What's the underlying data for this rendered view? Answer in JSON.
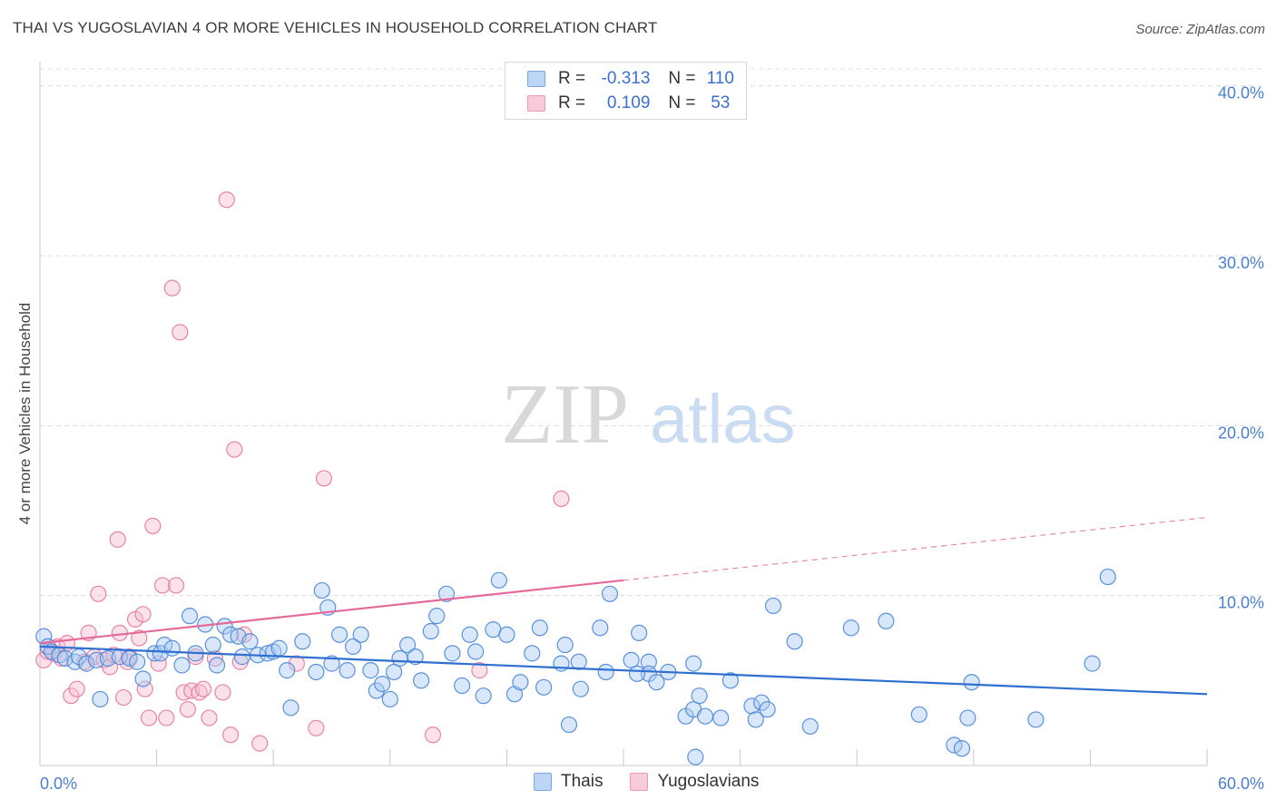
{
  "header": {
    "title": "THAI VS YUGOSLAVIAN 4 OR MORE VEHICLES IN HOUSEHOLD CORRELATION CHART",
    "source": "Source: ZipAtlas.com"
  },
  "watermark": {
    "zip": "ZIP",
    "atlas": "atlas"
  },
  "legend": {
    "rows": [
      {
        "r_label": "R =",
        "r_value": "-0.313",
        "n_label": "N =",
        "n_value": "110",
        "color": "#8fb7ea"
      },
      {
        "r_label": "R =",
        "r_value": "0.109",
        "n_label": "N =",
        "n_value": "53",
        "color": "#f0a3bb"
      }
    ]
  },
  "bottom_legend": {
    "thai": "Thais",
    "yugo": "Yugoslavians"
  },
  "chart_data": {
    "type": "scatter",
    "ylabel": "4 or more Vehicles in Household",
    "xlim": [
      0,
      60
    ],
    "ylim": [
      0,
      41
    ],
    "x_tick_labels": {
      "left": "0.0%",
      "right": "60.0%"
    },
    "y_ticks": [
      {
        "value": 10,
        "label": "10.0%"
      },
      {
        "value": 20,
        "label": "20.0%"
      },
      {
        "value": 30,
        "label": "30.0%"
      },
      {
        "value": 40,
        "label": "40.0%"
      }
    ],
    "grid": true,
    "colors": {
      "thai": "#4a86d8",
      "thai_fill": "#a9c9f1",
      "yugo": "#e5799b",
      "yugo_fill": "#f6bfd0",
      "thai_line": "#2f6fd0",
      "yugo_line": "#e5699a"
    },
    "series": [
      {
        "name": "Thais",
        "trend": {
          "x": [
            0,
            60
          ],
          "y": [
            7.0,
            4.2
          ],
          "dashed_from": null
        },
        "points": [
          [
            0.2,
            7.6
          ],
          [
            0.4,
            7.0
          ],
          [
            0.6,
            6.7
          ],
          [
            1.0,
            6.5
          ],
          [
            1.3,
            6.3
          ],
          [
            1.8,
            6.1
          ],
          [
            2.0,
            6.4
          ],
          [
            2.4,
            6.0
          ],
          [
            2.9,
            6.2
          ],
          [
            3.1,
            3.9
          ],
          [
            3.5,
            6.3
          ],
          [
            4.1,
            6.4
          ],
          [
            4.6,
            6.3
          ],
          [
            5.0,
            6.1
          ],
          [
            5.3,
            5.1
          ],
          [
            5.9,
            6.6
          ],
          [
            6.2,
            6.6
          ],
          [
            6.4,
            7.1
          ],
          [
            6.8,
            6.9
          ],
          [
            7.3,
            5.9
          ],
          [
            7.7,
            8.8
          ],
          [
            8.0,
            6.6
          ],
          [
            8.5,
            8.3
          ],
          [
            8.9,
            7.1
          ],
          [
            9.1,
            5.9
          ],
          [
            9.5,
            8.2
          ],
          [
            9.8,
            7.7
          ],
          [
            10.2,
            7.6
          ],
          [
            10.4,
            6.4
          ],
          [
            10.8,
            7.3
          ],
          [
            11.2,
            6.5
          ],
          [
            11.7,
            6.6
          ],
          [
            12.0,
            6.7
          ],
          [
            12.3,
            6.9
          ],
          [
            12.7,
            5.6
          ],
          [
            12.9,
            3.4
          ],
          [
            13.5,
            7.3
          ],
          [
            14.2,
            5.5
          ],
          [
            14.5,
            10.3
          ],
          [
            14.8,
            9.3
          ],
          [
            15.0,
            6.0
          ],
          [
            15.4,
            7.7
          ],
          [
            15.8,
            5.6
          ],
          [
            16.1,
            7.0
          ],
          [
            16.5,
            7.7
          ],
          [
            17.0,
            5.6
          ],
          [
            17.3,
            4.4
          ],
          [
            17.6,
            4.8
          ],
          [
            18.0,
            3.9
          ],
          [
            18.2,
            5.5
          ],
          [
            18.5,
            6.3
          ],
          [
            18.9,
            7.1
          ],
          [
            19.3,
            6.4
          ],
          [
            19.6,
            5.0
          ],
          [
            20.1,
            7.9
          ],
          [
            20.4,
            8.8
          ],
          [
            20.9,
            10.1
          ],
          [
            21.2,
            6.6
          ],
          [
            21.7,
            4.7
          ],
          [
            22.1,
            7.7
          ],
          [
            22.4,
            6.7
          ],
          [
            22.8,
            4.1
          ],
          [
            23.3,
            8.0
          ],
          [
            23.6,
            10.9
          ],
          [
            24.0,
            7.7
          ],
          [
            24.4,
            4.2
          ],
          [
            24.7,
            4.9
          ],
          [
            25.3,
            6.6
          ],
          [
            25.7,
            8.1
          ],
          [
            25.9,
            4.6
          ],
          [
            26.8,
            6.0
          ],
          [
            27.0,
            7.1
          ],
          [
            27.2,
            2.4
          ],
          [
            27.7,
            6.1
          ],
          [
            27.8,
            4.5
          ],
          [
            28.8,
            8.1
          ],
          [
            29.1,
            5.5
          ],
          [
            29.3,
            10.1
          ],
          [
            30.4,
            6.2
          ],
          [
            30.8,
            7.8
          ],
          [
            31.3,
            6.1
          ],
          [
            31.3,
            5.4
          ],
          [
            31.7,
            4.9
          ],
          [
            32.3,
            5.5
          ],
          [
            33.2,
            2.9
          ],
          [
            33.6,
            3.3
          ],
          [
            33.7,
            0.5
          ],
          [
            33.9,
            4.1
          ],
          [
            34.2,
            2.9
          ],
          [
            35.0,
            2.8
          ],
          [
            35.5,
            5.0
          ],
          [
            36.6,
            3.5
          ],
          [
            36.8,
            2.7
          ],
          [
            37.1,
            3.7
          ],
          [
            37.4,
            3.3
          ],
          [
            37.7,
            9.4
          ],
          [
            38.8,
            7.3
          ],
          [
            39.6,
            2.3
          ],
          [
            41.7,
            8.1
          ],
          [
            43.5,
            8.5
          ],
          [
            45.2,
            3.0
          ],
          [
            47.0,
            1.2
          ],
          [
            47.4,
            1.0
          ],
          [
            47.7,
            2.8
          ],
          [
            47.9,
            4.9
          ],
          [
            51.2,
            2.7
          ],
          [
            54.1,
            6.0
          ],
          [
            54.9,
            11.1
          ],
          [
            33.6,
            6.0
          ],
          [
            30.7,
            5.4
          ]
        ]
      },
      {
        "name": "Yugoslavians",
        "trend": {
          "x": [
            0,
            60
          ],
          "y": [
            7.2,
            14.6
          ],
          "dashed_from": 30
        },
        "points": [
          [
            0.2,
            6.2
          ],
          [
            0.4,
            6.7
          ],
          [
            0.7,
            6.6
          ],
          [
            0.9,
            7.0
          ],
          [
            1.1,
            6.3
          ],
          [
            1.4,
            7.2
          ],
          [
            1.6,
            4.1
          ],
          [
            1.9,
            4.5
          ],
          [
            2.3,
            6.1
          ],
          [
            2.5,
            7.8
          ],
          [
            2.8,
            6.4
          ],
          [
            3.0,
            10.1
          ],
          [
            3.3,
            6.2
          ],
          [
            3.6,
            5.8
          ],
          [
            3.8,
            6.5
          ],
          [
            4.0,
            13.3
          ],
          [
            4.1,
            7.8
          ],
          [
            4.3,
            4.0
          ],
          [
            4.5,
            6.1
          ],
          [
            4.6,
            6.4
          ],
          [
            4.9,
            8.6
          ],
          [
            5.1,
            7.5
          ],
          [
            5.3,
            8.9
          ],
          [
            5.4,
            4.5
          ],
          [
            5.6,
            2.8
          ],
          [
            5.8,
            14.1
          ],
          [
            6.1,
            6.0
          ],
          [
            6.3,
            10.6
          ],
          [
            6.5,
            2.8
          ],
          [
            6.8,
            28.1
          ],
          [
            7.0,
            10.6
          ],
          [
            7.2,
            25.5
          ],
          [
            7.4,
            4.3
          ],
          [
            7.6,
            3.3
          ],
          [
            7.8,
            4.4
          ],
          [
            8.0,
            6.4
          ],
          [
            8.2,
            4.3
          ],
          [
            8.4,
            4.5
          ],
          [
            8.7,
            2.8
          ],
          [
            9.0,
            6.3
          ],
          [
            9.4,
            4.3
          ],
          [
            9.6,
            33.3
          ],
          [
            9.8,
            1.8
          ],
          [
            10.0,
            18.6
          ],
          [
            10.3,
            6.1
          ],
          [
            10.5,
            7.7
          ],
          [
            11.3,
            1.3
          ],
          [
            13.2,
            6.0
          ],
          [
            14.2,
            2.2
          ],
          [
            14.6,
            16.9
          ],
          [
            20.2,
            1.8
          ],
          [
            22.6,
            5.6
          ],
          [
            26.8,
            15.7
          ]
        ]
      }
    ]
  }
}
